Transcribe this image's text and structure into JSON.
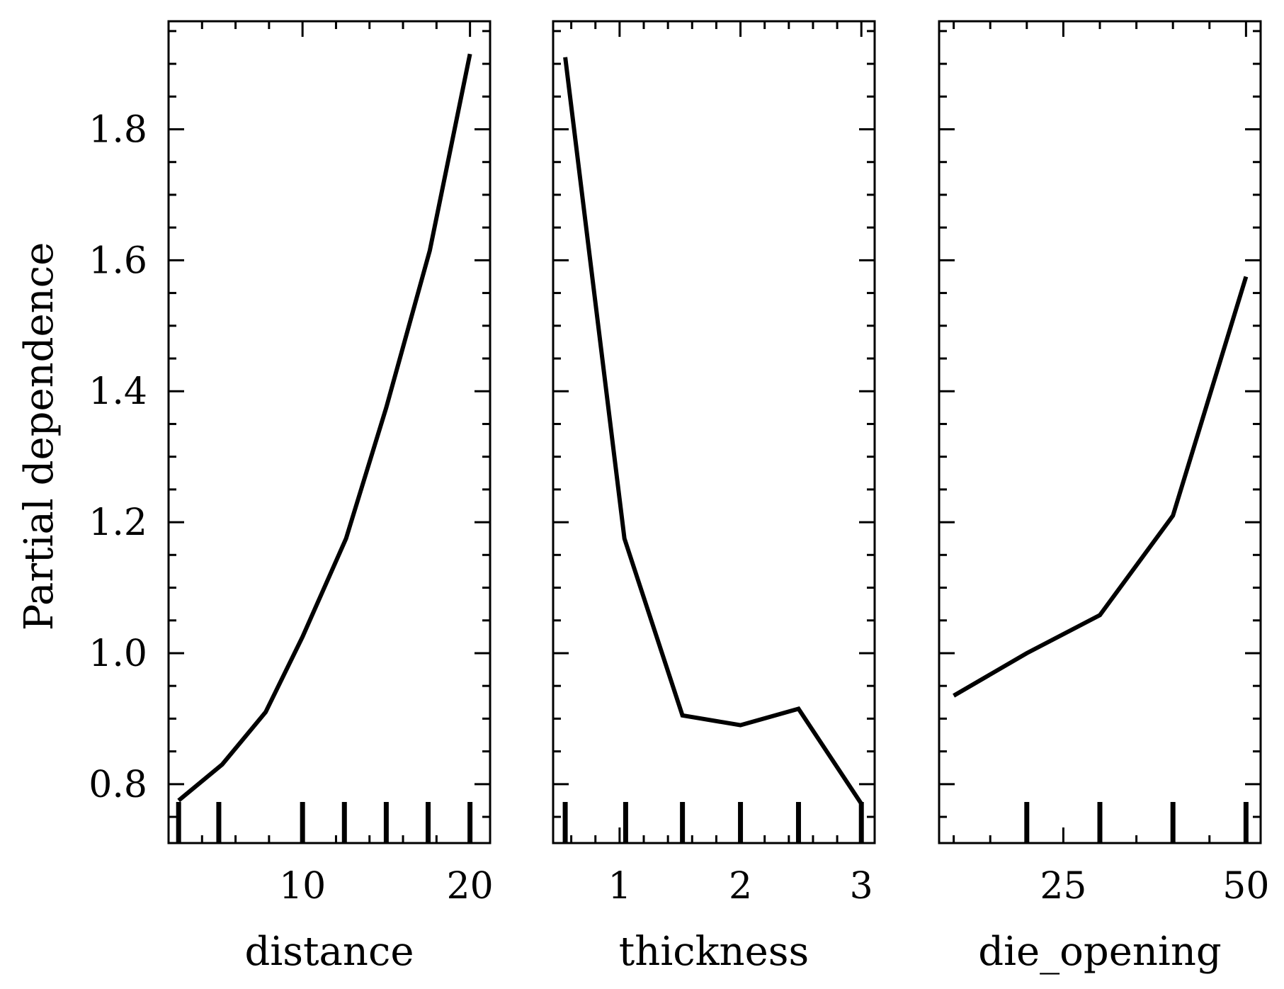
{
  "figure": {
    "ylabel": "Partial dependence",
    "y_tick_labels": [
      "0.8",
      "1.0",
      "1.2",
      "1.4",
      "1.6",
      "1.8"
    ]
  },
  "chart_data": [
    {
      "type": "line",
      "xlabel": "distance",
      "ylabel": "Partial dependence",
      "x": [
        2.6,
        5.2,
        7.8,
        10.0,
        12.6,
        15.0,
        17.6,
        20.0
      ],
      "y": [
        0.775,
        0.83,
        0.91,
        1.025,
        1.175,
        1.375,
        1.615,
        1.915
      ],
      "x_ticks": [
        10,
        20
      ],
      "x_tick_labels": [
        "10",
        "20"
      ],
      "xlim": [
        2,
        21.2
      ],
      "ylim": [
        0.71,
        1.965
      ],
      "deciles": [
        2.6,
        5.0,
        10.0,
        12.5,
        15.0,
        17.5,
        20.0
      ],
      "grid": false,
      "line_color": "#000000"
    },
    {
      "type": "line",
      "xlabel": "thickness",
      "ylabel": "Partial dependence",
      "x": [
        0.55,
        1.04,
        1.52,
        2.0,
        2.48,
        3.0
      ],
      "y": [
        1.91,
        1.175,
        0.905,
        0.89,
        0.915,
        0.77
      ],
      "x_ticks": [
        1,
        2,
        3
      ],
      "x_tick_labels": [
        "1",
        "2",
        "3"
      ],
      "xlim": [
        0.45,
        3.11
      ],
      "ylim": [
        0.71,
        1.965
      ],
      "deciles": [
        0.55,
        1.05,
        1.52,
        2.0,
        2.48,
        3.0
      ],
      "grid": false,
      "line_color": "#000000"
    },
    {
      "type": "line",
      "xlabel": "die_opening",
      "ylabel": "Partial dependence",
      "x": [
        10,
        20,
        30,
        40,
        50
      ],
      "y": [
        0.935,
        1.0,
        1.058,
        1.21,
        1.575
      ],
      "x_ticks": [
        25,
        50
      ],
      "x_tick_labels": [
        "25",
        "50"
      ],
      "xlim": [
        8,
        52
      ],
      "ylim": [
        0.71,
        1.965
      ],
      "deciles": [
        20,
        30,
        40,
        50
      ],
      "grid": false,
      "line_color": "#000000"
    }
  ]
}
